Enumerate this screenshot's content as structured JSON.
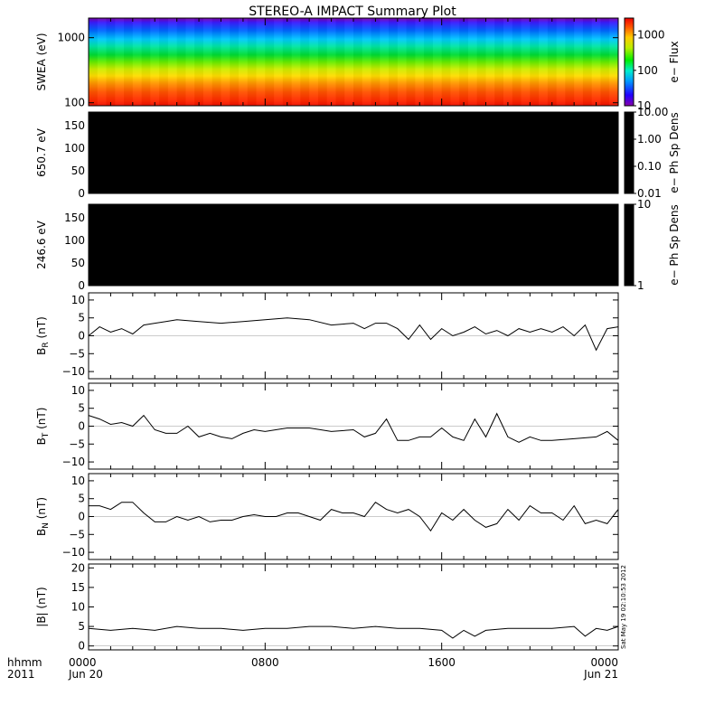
{
  "title": "STEREO-A IMPACT Summary Plot",
  "timestamp": "Sat May 19 02:10:53 2012",
  "time_axis": {
    "row1_label": "hhmm",
    "row2_label": "2011",
    "ticks": [
      {
        "hours": 0,
        "label": "0000",
        "date": "Jun 20"
      },
      {
        "hours": 8,
        "label": "0800",
        "date": ""
      },
      {
        "hours": 16,
        "label": "1600",
        "date": ""
      },
      {
        "hours": 24,
        "label": "0000",
        "date": "Jun 21"
      }
    ]
  },
  "chart_data": [
    {
      "type": "heatmap",
      "panel": "swea",
      "ylabel": "SWEA (eV)",
      "yscale": "log",
      "ylim": [
        90,
        2000
      ],
      "yticks": [
        {
          "v": 100,
          "label": "100"
        },
        {
          "v": 1000,
          "label": "1000"
        }
      ],
      "colorbar": {
        "label": "e− Flux",
        "scale": "log",
        "range": [
          10,
          3000
        ],
        "ticks": [
          {
            "v": 10,
            "label": "10"
          },
          {
            "v": 100,
            "label": "100"
          },
          {
            "v": 1000,
            "label": "1000"
          }
        ]
      }
    },
    {
      "type": "heatmap",
      "panel": "pad650",
      "ylabel": "650.7 eV",
      "ylim": [
        0,
        180
      ],
      "yticks": [
        {
          "v": 0,
          "label": "0"
        },
        {
          "v": 50,
          "label": "50"
        },
        {
          "v": 100,
          "label": "100"
        },
        {
          "v": 150,
          "label": "150"
        }
      ],
      "fill": "#000000",
      "colorbar": {
        "label": "e− Ph Sp Dens",
        "ticks": [
          {
            "v": 10,
            "label": "10.00"
          },
          {
            "v": 1,
            "label": "1.00"
          },
          {
            "v": 0.1,
            "label": "0.10"
          },
          {
            "v": 0.01,
            "label": "0.01"
          }
        ]
      }
    },
    {
      "type": "heatmap",
      "panel": "pad246",
      "ylabel": "246.6 eV",
      "ylim": [
        0,
        180
      ],
      "yticks": [
        {
          "v": 0,
          "label": "0"
        },
        {
          "v": 50,
          "label": "50"
        },
        {
          "v": 100,
          "label": "100"
        },
        {
          "v": 150,
          "label": "150"
        }
      ],
      "fill": "#000000",
      "colorbar": {
        "label": "e− Ph Sp Dens",
        "ticks": [
          {
            "v": 10,
            "label": "10"
          },
          {
            "v": 1,
            "label": "1"
          }
        ]
      }
    },
    {
      "type": "line",
      "panel": "br",
      "ylabel_main": "B",
      "ylabel_sub": "R",
      "ylabel_unit": " (nT)",
      "ylim": [
        -12,
        12
      ],
      "yticks": [
        {
          "v": -10,
          "label": "−10"
        },
        {
          "v": -5,
          "label": "−5"
        },
        {
          "v": 0,
          "label": "0"
        },
        {
          "v": 5,
          "label": "5"
        },
        {
          "v": 10,
          "label": "10"
        }
      ],
      "x": [
        0,
        0.5,
        1,
        1.5,
        2,
        2.5,
        3,
        3.5,
        4,
        5,
        6,
        7,
        8,
        9,
        10,
        11,
        12,
        12.5,
        13,
        13.5,
        14,
        14.5,
        15,
        15.5,
        16,
        16.5,
        17,
        17.5,
        18,
        18.5,
        19,
        19.5,
        20,
        20.5,
        21,
        21.5,
        22,
        22.5,
        23,
        23.5,
        24
      ],
      "y": [
        0,
        2.5,
        1,
        2,
        0.5,
        3,
        3.5,
        4,
        4.5,
        4,
        3.5,
        4,
        4.5,
        5,
        4.5,
        3,
        3.5,
        2,
        3.5,
        3.5,
        2,
        -1,
        3,
        -1,
        2,
        0,
        1,
        2.5,
        0.5,
        1.5,
        0,
        2,
        1,
        2,
        1,
        2.5,
        0,
        3,
        -4,
        2,
        2.5
      ]
    },
    {
      "type": "line",
      "panel": "bt",
      "ylabel_main": "B",
      "ylabel_sub": "T",
      "ylabel_unit": " (nT)",
      "ylim": [
        -12,
        12
      ],
      "yticks": [
        {
          "v": -10,
          "label": "−10"
        },
        {
          "v": -5,
          "label": "−5"
        },
        {
          "v": 0,
          "label": "0"
        },
        {
          "v": 5,
          "label": "5"
        },
        {
          "v": 10,
          "label": "10"
        }
      ],
      "x": [
        0,
        0.5,
        1,
        1.5,
        2,
        2.5,
        3,
        3.5,
        4,
        4.5,
        5,
        5.5,
        6,
        6.5,
        7,
        7.5,
        8,
        9,
        10,
        11,
        12,
        12.5,
        13,
        13.5,
        14,
        14.5,
        15,
        15.5,
        16,
        16.5,
        17,
        17.5,
        18,
        18.5,
        19,
        19.5,
        20,
        20.5,
        21,
        22,
        23,
        23.5,
        24
      ],
      "y": [
        3,
        2,
        0.5,
        1,
        0,
        3,
        -1,
        -2,
        -2,
        0,
        -3,
        -2,
        -3,
        -3.5,
        -2,
        -1,
        -1.5,
        -0.5,
        -0.5,
        -1.5,
        -1,
        -3,
        -2,
        2,
        -4,
        -4,
        -3,
        -3,
        -0.5,
        -3,
        -4,
        2,
        -3,
        3.5,
        -3,
        -4.5,
        -3,
        -4,
        -4,
        -3.5,
        -3,
        -1.5,
        -4
      ]
    },
    {
      "type": "line",
      "panel": "bn",
      "ylabel_main": "B",
      "ylabel_sub": "N",
      "ylabel_unit": " (nT)",
      "ylim": [
        -12,
        12
      ],
      "yticks": [
        {
          "v": -10,
          "label": "−10"
        },
        {
          "v": -5,
          "label": "−5"
        },
        {
          "v": 0,
          "label": "0"
        },
        {
          "v": 5,
          "label": "5"
        },
        {
          "v": 10,
          "label": "10"
        }
      ],
      "x": [
        0,
        0.5,
        1,
        1.5,
        2,
        2.5,
        3,
        3.5,
        4,
        4.5,
        5,
        5.5,
        6,
        6.5,
        7,
        7.5,
        8,
        8.5,
        9,
        9.5,
        10,
        10.5,
        11,
        11.5,
        12,
        12.5,
        13,
        13.5,
        14,
        14.5,
        15,
        15.5,
        16,
        16.5,
        17,
        17.5,
        18,
        18.5,
        19,
        19.5,
        20,
        20.5,
        21,
        21.5,
        22,
        22.5,
        23,
        23.5,
        24
      ],
      "y": [
        3,
        3,
        2,
        4,
        4,
        1,
        -1.5,
        -1.5,
        0,
        -1,
        0,
        -1.5,
        -1,
        -1,
        0,
        0.5,
        0,
        0,
        1,
        1,
        0,
        -1,
        2,
        1,
        1,
        0,
        4,
        2,
        1,
        2,
        0,
        -4,
        1,
        -1,
        2,
        -1,
        -3,
        -2,
        2,
        -1,
        3,
        1,
        1,
        -1,
        3,
        -2,
        -1,
        -2,
        2
      ]
    },
    {
      "type": "line",
      "panel": "bmag",
      "ylabel_main": "|B|",
      "ylabel_sub": "",
      "ylabel_unit": " (nT)",
      "ylim": [
        -1,
        21
      ],
      "yticks": [
        {
          "v": 0,
          "label": "0"
        },
        {
          "v": 5,
          "label": "5"
        },
        {
          "v": 10,
          "label": "10"
        },
        {
          "v": 15,
          "label": "15"
        },
        {
          "v": 20,
          "label": "20"
        }
      ],
      "x": [
        0,
        1,
        2,
        3,
        4,
        5,
        6,
        7,
        8,
        9,
        10,
        11,
        12,
        13,
        14,
        15,
        16,
        16.5,
        17,
        17.5,
        18,
        19,
        20,
        21,
        22,
        22.5,
        23,
        23.5,
        24
      ],
      "y": [
        4.5,
        4,
        4.5,
        4,
        5,
        4.5,
        4.5,
        4,
        4.5,
        4.5,
        5,
        5,
        4.5,
        5,
        4.5,
        4.5,
        4,
        2,
        4,
        2.5,
        4,
        4.5,
        4.5,
        4.5,
        5,
        2.5,
        4.5,
        4,
        5
      ]
    }
  ]
}
